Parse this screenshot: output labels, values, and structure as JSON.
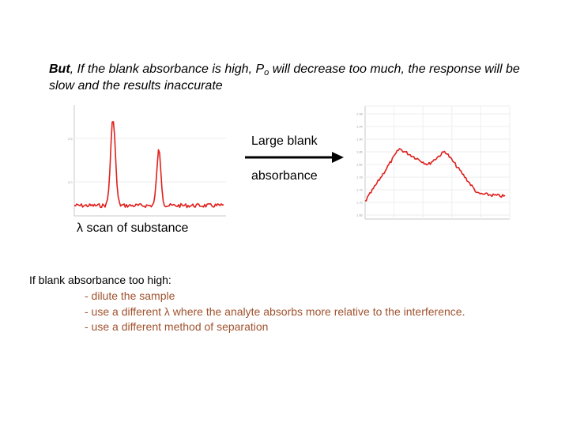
{
  "headline": {
    "lead": "But",
    "part1": ", If the blank absorbance is high, P",
    "subscript": "o",
    "part2": " will decrease too much, the response will be slow and the results inaccurate"
  },
  "plots": {
    "left_axis_ticks": [
      "2.5",
      "2.0"
    ],
    "right_axis_ticks": [
      "1.98",
      "1.94",
      "1.90",
      "1.86",
      "1.82",
      "1.78",
      "1.74",
      "1.70",
      "1.66"
    ],
    "trace_color": "#e0201c"
  },
  "transition": {
    "line1": "Large blank",
    "line2": "absorbance"
  },
  "caption": {
    "lambda": "λ",
    "text": " scan of substance"
  },
  "notes": {
    "heading": "If blank absorbance too high:",
    "item1": "- dilute the sample",
    "item2_pre": "- use a different ",
    "item2_lambda": "λ",
    "item2_post": " where the analyte absorbs more relative to the interference.",
    "item3": "- use a different method of separation"
  }
}
